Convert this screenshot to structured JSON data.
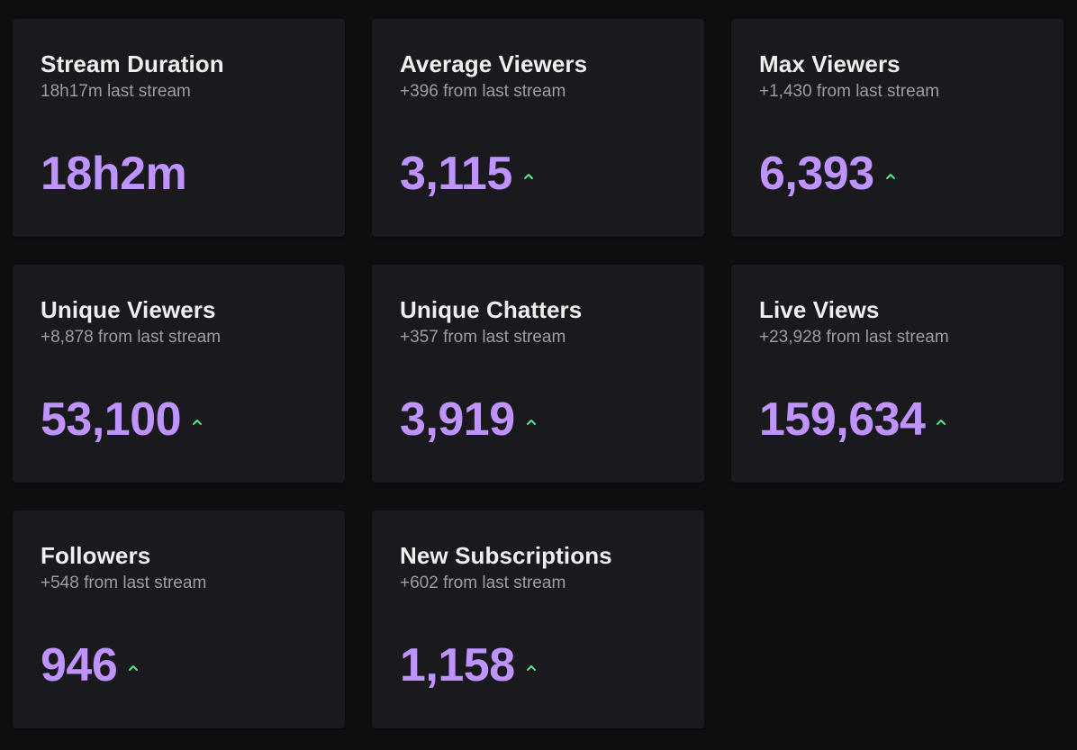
{
  "accent_color": "#bf94ff",
  "trend_color": "#4ee88a",
  "stats": [
    {
      "title": "Stream Duration",
      "subtitle": "18h17m last stream",
      "value": "18h2m",
      "trend": "none"
    },
    {
      "title": "Average Viewers",
      "subtitle": "+396 from last stream",
      "value": "3,115",
      "trend": "up"
    },
    {
      "title": "Max Viewers",
      "subtitle": "+1,430 from last stream",
      "value": "6,393",
      "trend": "up"
    },
    {
      "title": "Unique Viewers",
      "subtitle": "+8,878 from last stream",
      "value": "53,100",
      "trend": "up"
    },
    {
      "title": "Unique Chatters",
      "subtitle": "+357 from last stream",
      "value": "3,919",
      "trend": "up"
    },
    {
      "title": "Live Views",
      "subtitle": "+23,928 from last stream",
      "value": "159,634",
      "trend": "up"
    },
    {
      "title": "Followers",
      "subtitle": "+548 from last stream",
      "value": "946",
      "trend": "up"
    },
    {
      "title": "New Subscriptions",
      "subtitle": "+602 from last stream",
      "value": "1,158",
      "trend": "up"
    }
  ]
}
